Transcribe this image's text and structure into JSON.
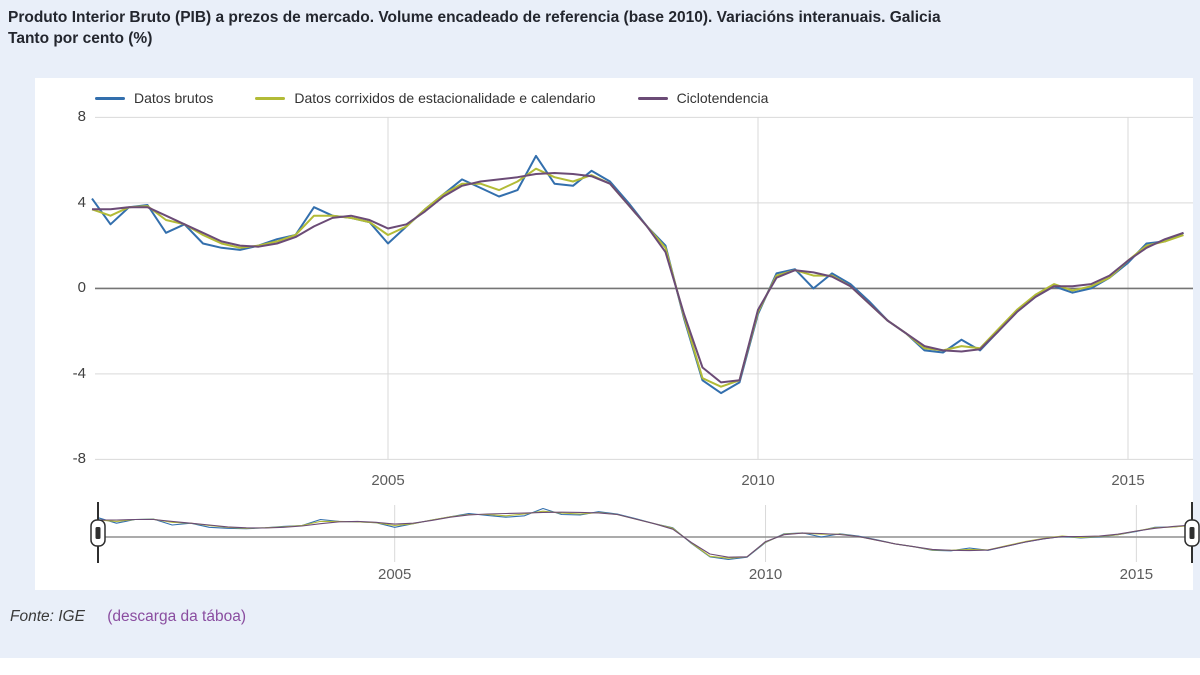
{
  "title": {
    "line1": "Produto Interior Bruto (PIB) a prezos de mercado. Volume encadeado de referencia (base 2010). Variacións interanuais. Galicia",
    "line2": "Tanto por cento (%)"
  },
  "source": {
    "prefix": "Fonte: IGE",
    "link_label": "(descarga da táboa)"
  },
  "colors": {
    "page_background": "#e9eff9",
    "panel_background": "#ffffff",
    "gridline": "#d9d9d9",
    "zero_line": "#757575",
    "link_purple": "#8a4da0"
  },
  "chart_data": {
    "type": "line",
    "title": "Produto Interior Bruto (PIB) a prezos de mercado. Volume encadeado de referencia (base 2010). Variacións interanuais. Galicia",
    "subtitle": "Tanto por cento (%)",
    "x_unit": "quarter",
    "x_start": 2001.0,
    "x_step": 0.25,
    "x_end": 2015.75,
    "ylim": [
      -8,
      8
    ],
    "grid": true,
    "legend_position": "top",
    "has_range_navigator": true,
    "yAxis": {
      "ticks": [
        8,
        4,
        0,
        -4,
        -8
      ]
    },
    "xAxis": {
      "ticks": [
        2005,
        2010,
        2015
      ],
      "labels": [
        "2005",
        "2010",
        "2015"
      ]
    },
    "navigator": {
      "labels": [
        "2005",
        "2010",
        "2015"
      ]
    },
    "series": [
      {
        "name": "Datos brutos",
        "color": "#336fad",
        "values": [
          4.2,
          3.0,
          3.8,
          3.9,
          2.6,
          3.0,
          2.1,
          1.9,
          1.8,
          2.0,
          2.3,
          2.5,
          3.8,
          3.4,
          3.3,
          3.1,
          2.1,
          2.9,
          3.7,
          4.4,
          5.1,
          4.7,
          4.3,
          4.6,
          6.2,
          4.9,
          4.8,
          5.5,
          5.0,
          4.0,
          2.9,
          2.0,
          -1.4,
          -4.3,
          -4.9,
          -4.4,
          -1.2,
          0.7,
          0.9,
          0.0,
          0.7,
          0.2,
          -0.6,
          -1.5,
          -2.1,
          -2.9,
          -3.0,
          -2.4,
          -2.9,
          -2.0,
          -1.1,
          -0.4,
          0.1,
          -0.2,
          0.0,
          0.5,
          1.2,
          2.1,
          2.2,
          2.6
        ]
      },
      {
        "name": "Datos corrixidos de estacionalidade e calendario",
        "color": "#b2bb36",
        "values": [
          3.7,
          3.4,
          3.8,
          3.85,
          3.2,
          3.0,
          2.5,
          2.1,
          1.9,
          2.0,
          2.2,
          2.5,
          3.4,
          3.4,
          3.3,
          3.1,
          2.5,
          2.9,
          3.7,
          4.4,
          4.9,
          4.9,
          4.6,
          5.0,
          5.6,
          5.2,
          5.0,
          5.3,
          4.9,
          3.9,
          2.9,
          1.9,
          -1.3,
          -4.2,
          -4.6,
          -4.3,
          -1.1,
          0.6,
          0.85,
          0.6,
          0.6,
          0.1,
          -0.7,
          -1.5,
          -2.1,
          -2.8,
          -2.9,
          -2.7,
          -2.8,
          -1.9,
          -1.0,
          -0.3,
          0.2,
          -0.1,
          0.1,
          0.5,
          1.3,
          2.0,
          2.2,
          2.5
        ]
      },
      {
        "name": "Ciclotendencia",
        "color": "#6b4b76",
        "values": [
          3.7,
          3.7,
          3.8,
          3.8,
          3.4,
          3.0,
          2.6,
          2.2,
          2.0,
          1.95,
          2.1,
          2.4,
          2.9,
          3.3,
          3.4,
          3.2,
          2.8,
          3.0,
          3.6,
          4.3,
          4.8,
          5.0,
          5.1,
          5.2,
          5.35,
          5.4,
          5.35,
          5.25,
          4.9,
          3.9,
          2.9,
          1.7,
          -1.2,
          -3.7,
          -4.4,
          -4.3,
          -1.0,
          0.5,
          0.85,
          0.75,
          0.55,
          0.1,
          -0.7,
          -1.5,
          -2.1,
          -2.7,
          -2.9,
          -2.95,
          -2.85,
          -2.0,
          -1.1,
          -0.4,
          0.1,
          0.1,
          0.2,
          0.6,
          1.3,
          1.9,
          2.3,
          2.6
        ]
      }
    ]
  }
}
